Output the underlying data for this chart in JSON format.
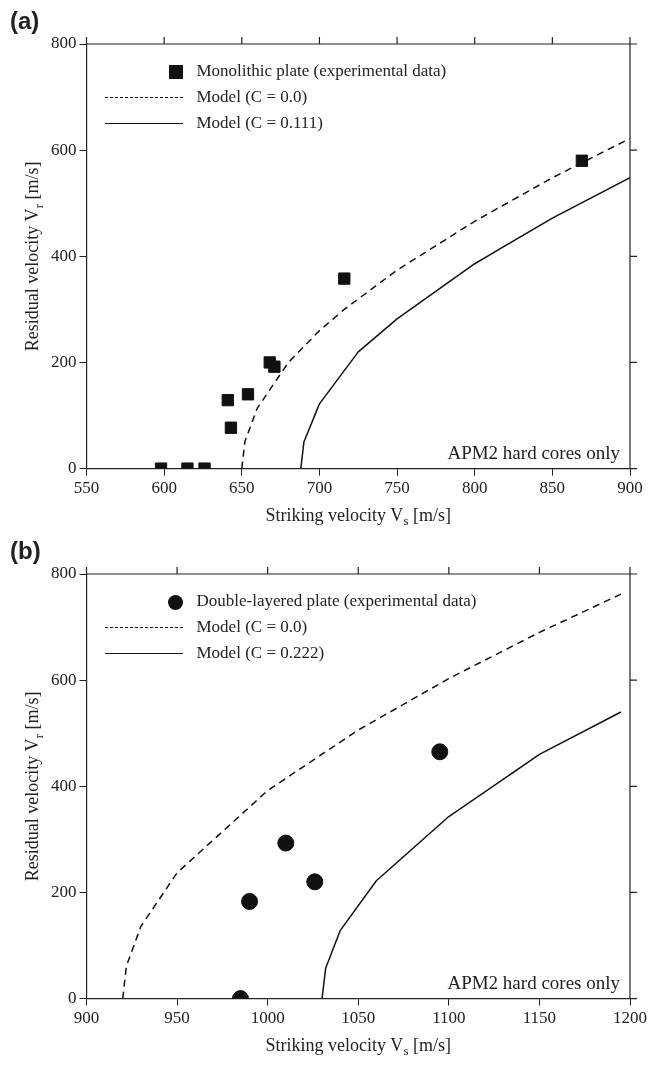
{
  "chart_data": [
    {
      "type": "scatter",
      "title": "(a)",
      "xlabel": "Striking velocity V$_{s}$ [m/s]",
      "ylabel": "Residual velocity V$_{r}$ [m/s]",
      "xlim": [
        550,
        900
      ],
      "xticks": [
        550,
        600,
        650,
        700,
        750,
        800,
        850,
        900
      ],
      "ylim": [
        0,
        800
      ],
      "yticks": [
        0,
        200,
        400,
        600,
        800
      ],
      "grid": false,
      "legend": "top left",
      "annotations": [
        "APM2 hard cores only"
      ],
      "series": [
        {
          "name": "Monolithic plate (experimental data)",
          "type": "scatter",
          "marker": "square",
          "color": "#111111",
          "x": [
            598,
            615,
            626,
            641,
            643,
            654,
            668,
            671,
            716,
            869
          ],
          "values": [
            0,
            0,
            0,
            129,
            77,
            140,
            200,
            192,
            358,
            580
          ]
        },
        {
          "name": "Model (C = 0.0)",
          "type": "line",
          "line_style": "dashed",
          "marker": "none",
          "color": "#111111",
          "x": [
            650,
            652,
            660,
            680,
            700,
            716,
            750,
            800,
            850,
            900
          ],
          "values": [
            0,
            51,
            114,
            200,
            260,
            300,
            374,
            466,
            548,
            622
          ]
        },
        {
          "name": "Model (C = 0.111)",
          "type": "line",
          "line_style": "solid",
          "marker": "none",
          "color": "#111111",
          "x": [
            688,
            690,
            700,
            725,
            750,
            800,
            850,
            900
          ],
          "values": [
            0,
            50,
            122,
            220,
            282,
            386,
            472,
            548
          ]
        }
      ]
    },
    {
      "type": "scatter",
      "title": "(b)",
      "xlabel": "Striking velocity V$_{s}$ [m/s]",
      "ylabel": "Residual velocity V$_{r}$ [m/s]",
      "xlim": [
        900,
        1200
      ],
      "xticks": [
        900,
        950,
        1000,
        1050,
        1100,
        1150,
        1200
      ],
      "ylim": [
        0,
        800
      ],
      "yticks": [
        0,
        200,
        400,
        600,
        800
      ],
      "grid": false,
      "legend": "top left",
      "annotations": [
        "APM2 hard cores only"
      ],
      "series": [
        {
          "name": "Double-layered plate (experimental data)",
          "type": "scatter",
          "marker": "circle",
          "color": "#111111",
          "x": [
            985,
            990,
            1010,
            1026,
            1095
          ],
          "values": [
            0,
            183,
            293,
            220,
            465
          ]
        },
        {
          "name": "Model (C = 0.0)",
          "type": "line",
          "line_style": "dashed",
          "marker": "none",
          "color": "#111111",
          "x": [
            920,
            922,
            930,
            950,
            1000,
            1050,
            1100,
            1150,
            1195
          ],
          "values": [
            0,
            61,
            136,
            237,
            392,
            506,
            603,
            690,
            762
          ]
        },
        {
          "name": "Model (C = 0.222)",
          "type": "line",
          "line_style": "solid",
          "marker": "none",
          "color": "#111111",
          "x": [
            1030,
            1032,
            1040,
            1060,
            1100,
            1150,
            1195
          ],
          "values": [
            0,
            57,
            128,
            222,
            343,
            460,
            540
          ]
        }
      ]
    }
  ]
}
